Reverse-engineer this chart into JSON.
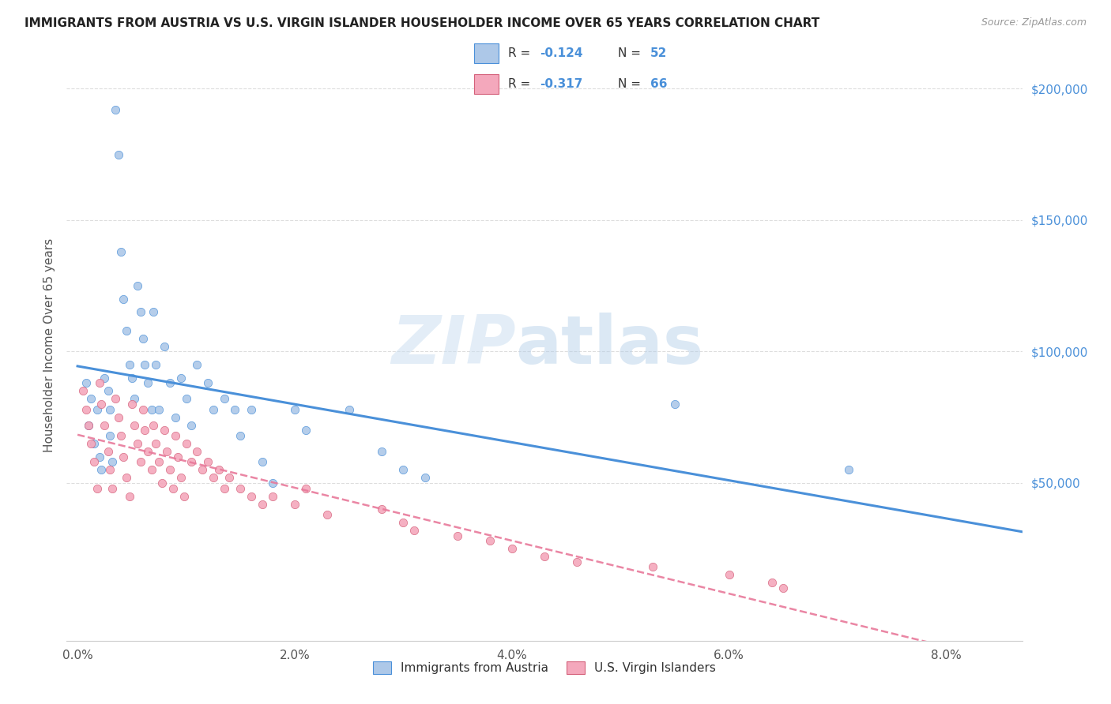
{
  "title": "IMMIGRANTS FROM AUSTRIA VS U.S. VIRGIN ISLANDER HOUSEHOLDER INCOME OVER 65 YEARS CORRELATION CHART",
  "source": "Source: ZipAtlas.com",
  "ylabel": "Householder Income Over 65 years",
  "xlabel_ticks": [
    "0.0%",
    "2.0%",
    "4.0%",
    "6.0%",
    "8.0%"
  ],
  "xlabel_vals": [
    0.0,
    0.02,
    0.04,
    0.06,
    0.08
  ],
  "ylabel_ticks": [
    "$50,000",
    "$100,000",
    "$150,000",
    "$200,000"
  ],
  "ylabel_vals": [
    50000,
    100000,
    150000,
    200000
  ],
  "ylim": [
    -10000,
    215000
  ],
  "xlim": [
    -0.001,
    0.087
  ],
  "legend_r1": "-0.124",
  "legend_n1": "52",
  "legend_r2": "-0.317",
  "legend_n2": "66",
  "legend_label1": "Immigrants from Austria",
  "legend_label2": "U.S. Virgin Islanders",
  "blue_color": "#adc8e8",
  "pink_color": "#f4a8bc",
  "blue_line_color": "#4a90d9",
  "pink_line_color": "#e8799a",
  "watermark_zip": "ZIP",
  "watermark_atlas": "atlas",
  "blue_scatter_x": [
    0.0008,
    0.001,
    0.0012,
    0.0015,
    0.0018,
    0.002,
    0.0022,
    0.0025,
    0.0028,
    0.003,
    0.003,
    0.0032,
    0.0035,
    0.0038,
    0.004,
    0.0042,
    0.0045,
    0.0048,
    0.005,
    0.0052,
    0.0055,
    0.0058,
    0.006,
    0.0062,
    0.0065,
    0.0068,
    0.007,
    0.0072,
    0.0075,
    0.008,
    0.0085,
    0.009,
    0.0095,
    0.01,
    0.0105,
    0.011,
    0.012,
    0.0125,
    0.0135,
    0.0145,
    0.015,
    0.016,
    0.017,
    0.018,
    0.02,
    0.021,
    0.025,
    0.028,
    0.03,
    0.032,
    0.055,
    0.071
  ],
  "blue_scatter_y": [
    88000,
    72000,
    82000,
    65000,
    78000,
    60000,
    55000,
    90000,
    85000,
    78000,
    68000,
    58000,
    192000,
    175000,
    138000,
    120000,
    108000,
    95000,
    90000,
    82000,
    125000,
    115000,
    105000,
    95000,
    88000,
    78000,
    115000,
    95000,
    78000,
    102000,
    88000,
    75000,
    90000,
    82000,
    72000,
    95000,
    88000,
    78000,
    82000,
    78000,
    68000,
    78000,
    58000,
    50000,
    78000,
    70000,
    78000,
    62000,
    55000,
    52000,
    80000,
    55000
  ],
  "pink_scatter_x": [
    0.0005,
    0.0008,
    0.001,
    0.0012,
    0.0015,
    0.0018,
    0.002,
    0.0022,
    0.0025,
    0.0028,
    0.003,
    0.0032,
    0.0035,
    0.0038,
    0.004,
    0.0042,
    0.0045,
    0.0048,
    0.005,
    0.0052,
    0.0055,
    0.0058,
    0.006,
    0.0062,
    0.0065,
    0.0068,
    0.007,
    0.0072,
    0.0075,
    0.0078,
    0.008,
    0.0082,
    0.0085,
    0.0088,
    0.009,
    0.0092,
    0.0095,
    0.0098,
    0.01,
    0.0105,
    0.011,
    0.0115,
    0.012,
    0.0125,
    0.013,
    0.0135,
    0.014,
    0.015,
    0.016,
    0.017,
    0.018,
    0.02,
    0.021,
    0.023,
    0.028,
    0.03,
    0.031,
    0.035,
    0.038,
    0.04,
    0.043,
    0.046,
    0.053,
    0.06,
    0.064,
    0.065
  ],
  "pink_scatter_y": [
    85000,
    78000,
    72000,
    65000,
    58000,
    48000,
    88000,
    80000,
    72000,
    62000,
    55000,
    48000,
    82000,
    75000,
    68000,
    60000,
    52000,
    45000,
    80000,
    72000,
    65000,
    58000,
    78000,
    70000,
    62000,
    55000,
    72000,
    65000,
    58000,
    50000,
    70000,
    62000,
    55000,
    48000,
    68000,
    60000,
    52000,
    45000,
    65000,
    58000,
    62000,
    55000,
    58000,
    52000,
    55000,
    48000,
    52000,
    48000,
    45000,
    42000,
    45000,
    42000,
    48000,
    38000,
    40000,
    35000,
    32000,
    30000,
    28000,
    25000,
    22000,
    20000,
    18000,
    15000,
    12000,
    10000
  ]
}
